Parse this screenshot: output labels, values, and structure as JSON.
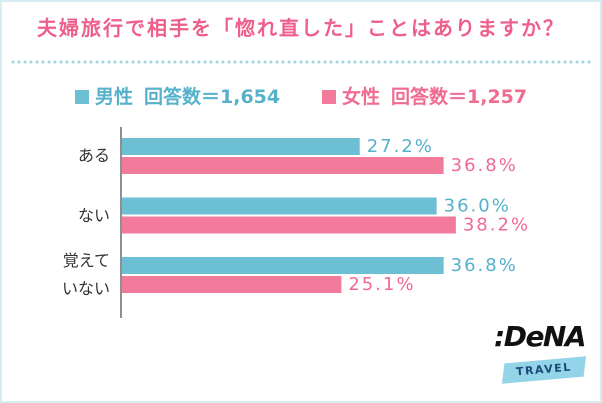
{
  "colors": {
    "title": "#ee5f8b",
    "divider": "#a6d7e5",
    "axis": "#8f8f8f",
    "category_text": "#333333",
    "frame_border": "#d6edf4",
    "logo": "#111111",
    "logo_badge": "#93d4e9",
    "logo_badge_text": "#1c4a78"
  },
  "legend": [
    {
      "note": "回答数＝1,654"
    },
    {
      "note": "回答数＝1,257"
    }
  ],
  "chart_data": {
    "type": "bar",
    "orientation": "horizontal",
    "title": "夫婦旅行で相手を「惚れ直した」ことはありますか？",
    "categories": [
      "ある",
      "ない",
      "覚えて\nいない"
    ],
    "series": [
      {
        "name": "男性",
        "values": [
          27.2,
          36.0,
          36.8
        ],
        "color": "#6dbfd4",
        "text_color": "#56b1cb"
      },
      {
        "name": "女性",
        "values": [
          36.8,
          38.2,
          25.1
        ],
        "color": "#f27b9c",
        "text_color": "#ef6b92"
      }
    ],
    "unit": "%",
    "xlim": [
      0,
      50
    ],
    "grid": false,
    "legend_position": "top"
  },
  "logo": {
    "wordmark": ":DeNA",
    "badge": "TRAVEL"
  }
}
